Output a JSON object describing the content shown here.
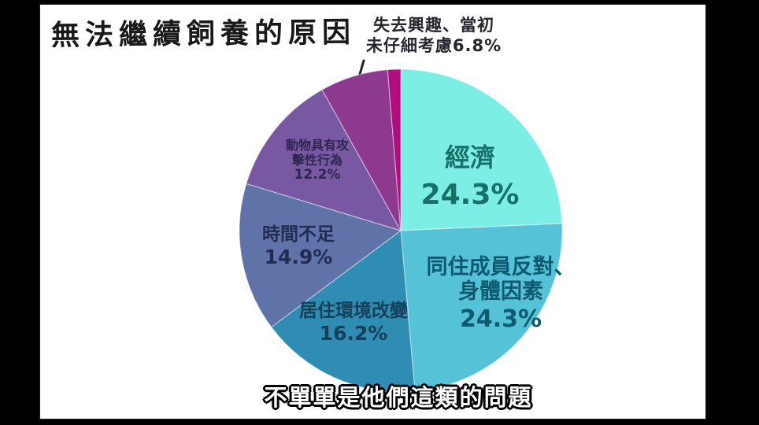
{
  "colors": {
    "letterbox": "#000000",
    "slide_background": "#ffffff",
    "slice_separator": "rgba(255,255,255,0.45)",
    "arrow": "#20202a",
    "subtitle_fill": "#ffffff",
    "subtitle_outline": "#000000",
    "title_ink": "#191919"
  },
  "title": {
    "text": "無法繼續飼養的原因"
  },
  "subtitle": {
    "text": "不單單是他們這類的問題"
  },
  "annotation": {
    "line1": "失去興趣、當初",
    "line2": "未仔細考慮6.8%",
    "target_slice": "失去興趣、當初未仔細考慮"
  },
  "chart_data": {
    "type": "pie",
    "title": "無法繼續飼養的原因",
    "direction": "clockwise",
    "start_angle": "12-oclock",
    "legend_position": "none",
    "slices": [
      {
        "label": "經濟",
        "value": 24.3,
        "pct_label": "24.3%",
        "color": "#7ceee4",
        "label_color": "#177168",
        "lines": [
          "經濟"
        ]
      },
      {
        "label": "同住成員反對、身體因素",
        "value": 24.3,
        "pct_label": "24.3%",
        "color": "#55c2d8",
        "label_color": "#0d5a70",
        "lines": [
          "同住成員反對、",
          "身體因素"
        ]
      },
      {
        "label": "居住環境改變",
        "value": 16.2,
        "pct_label": "16.2%",
        "color": "#2f8cb3",
        "label_color": "#15405a",
        "lines": [
          "居住環境改變"
        ]
      },
      {
        "label": "時間不足",
        "value": 14.9,
        "pct_label": "14.9%",
        "color": "#5f73a9",
        "label_color": "#202c52",
        "lines": [
          "時間不足"
        ]
      },
      {
        "label": "動物具有攻擊性行為",
        "value": 12.2,
        "pct_label": "12.2%",
        "color": "#7858a2",
        "label_color": "#2d2750",
        "lines": [
          "動物具有攻",
          "擊性行為"
        ]
      },
      {
        "label": "失去興趣、當初未仔細考慮",
        "value": 6.8,
        "pct_label": "6.8%",
        "color": "#8e3990",
        "label_color": "#26262e",
        "label_position": "outside"
      },
      {
        "label": "",
        "value": 1.3,
        "pct_label": "",
        "color": "#b00d7e"
      }
    ]
  }
}
